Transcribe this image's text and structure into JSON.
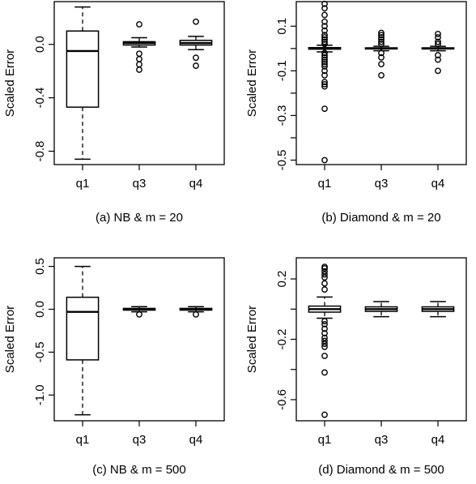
{
  "chart_data": [
    {
      "type": "boxplot",
      "caption": "(a) NB & m = 20",
      "ylabel": "Scaled Error",
      "categories": [
        "q1",
        "q3",
        "q4"
      ],
      "ylim": [
        -0.9,
        0.32
      ],
      "yticks": [
        -0.8,
        -0.4,
        0.0
      ],
      "ytick_labels": [
        "-0.8",
        "-0.4",
        "0.0"
      ],
      "boxes": [
        {
          "name": "q1",
          "whisker_low": -0.86,
          "q1": -0.47,
          "median": -0.05,
          "q3": 0.1,
          "whisker_high": 0.28,
          "outliers": []
        },
        {
          "name": "q3",
          "whisker_low": -0.02,
          "q1": -0.005,
          "median": 0.01,
          "q3": 0.02,
          "whisker_high": 0.05,
          "outliers": [
            0.15,
            -0.07,
            -0.11,
            -0.15,
            -0.19
          ]
        },
        {
          "name": "q4",
          "whisker_low": -0.04,
          "q1": -0.005,
          "median": 0.01,
          "q3": 0.03,
          "whisker_high": 0.06,
          "outliers": [
            0.17,
            -0.1,
            -0.16
          ]
        }
      ]
    },
    {
      "type": "boxplot",
      "caption": "(b) Diamond & m = 20",
      "ylabel": "Scaled Error",
      "categories": [
        "q1",
        "q3",
        "q4"
      ],
      "ylim": [
        -0.52,
        0.21
      ],
      "yticks": [
        -0.5,
        -0.4,
        -0.3,
        -0.2,
        -0.1,
        0.0,
        0.1
      ],
      "ytick_labels": [
        "-0.5",
        "",
        "-0.3",
        "",
        "-0.1",
        "",
        "0.1"
      ],
      "boxes": [
        {
          "name": "q1",
          "whisker_low": -0.015,
          "q1": -0.003,
          "median": 0.0,
          "q3": 0.004,
          "whisker_high": 0.015,
          "outliers": [
            0.2,
            0.18,
            0.15,
            0.12,
            0.1,
            0.08,
            0.06,
            0.05,
            0.04,
            0.03,
            0.02,
            -0.02,
            -0.03,
            -0.04,
            -0.05,
            -0.06,
            -0.07,
            -0.08,
            -0.1,
            -0.12,
            -0.15,
            -0.16,
            -0.17,
            -0.27,
            -0.5
          ]
        },
        {
          "name": "q3",
          "whisker_low": -0.01,
          "q1": -0.002,
          "median": 0.0,
          "q3": 0.003,
          "whisker_high": 0.01,
          "outliers": [
            0.07,
            0.06,
            0.05,
            0.04,
            0.03,
            0.02,
            -0.02,
            -0.04,
            -0.07,
            -0.12
          ]
        },
        {
          "name": "q4",
          "whisker_low": -0.01,
          "q1": -0.002,
          "median": 0.0,
          "q3": 0.003,
          "whisker_high": 0.01,
          "outliers": [
            0.065,
            0.05,
            0.03,
            0.02,
            -0.03,
            -0.05,
            -0.1
          ]
        }
      ]
    },
    {
      "type": "boxplot",
      "caption": "(c) NB & m = 500",
      "ylabel": "Scaled Error",
      "categories": [
        "q1",
        "q3",
        "q4"
      ],
      "ylim": [
        -1.3,
        0.6
      ],
      "yticks": [
        -1.0,
        -0.5,
        0.0,
        0.5
      ],
      "ytick_labels": [
        "-1.0",
        "-0.5",
        "0.0",
        "0.5"
      ],
      "boxes": [
        {
          "name": "q1",
          "whisker_low": -1.23,
          "q1": -0.59,
          "median": -0.03,
          "q3": 0.14,
          "whisker_high": 0.5,
          "outliers": []
        },
        {
          "name": "q3",
          "whisker_low": -0.03,
          "q1": -0.01,
          "median": 0.0,
          "q3": 0.01,
          "whisker_high": 0.03,
          "outliers": [
            -0.06
          ]
        },
        {
          "name": "q4",
          "whisker_low": -0.03,
          "q1": -0.01,
          "median": 0.0,
          "q3": 0.01,
          "whisker_high": 0.03,
          "outliers": [
            -0.06
          ]
        }
      ]
    },
    {
      "type": "boxplot",
      "caption": "(d) Diamond & m = 500",
      "ylabel": "Scaled Error",
      "categories": [
        "q1",
        "q3",
        "q4"
      ],
      "ylim": [
        -0.74,
        0.34
      ],
      "yticks": [
        -0.6,
        -0.4,
        -0.2,
        0.0,
        0.2
      ],
      "ytick_labels": [
        "-0.6",
        "",
        "-0.2",
        "",
        "0.2"
      ],
      "boxes": [
        {
          "name": "q1",
          "whisker_low": -0.06,
          "q1": -0.02,
          "median": 0.0,
          "q3": 0.02,
          "whisker_high": 0.08,
          "outliers": [
            0.28,
            0.27,
            0.25,
            0.23,
            0.21,
            0.17,
            0.13,
            -0.08,
            -0.1,
            -0.13,
            -0.16,
            -0.19,
            -0.21,
            -0.23,
            -0.25,
            -0.31,
            -0.42,
            -0.7
          ]
        },
        {
          "name": "q3",
          "whisker_low": -0.05,
          "q1": -0.015,
          "median": 0.0,
          "q3": 0.015,
          "whisker_high": 0.05,
          "outliers": []
        },
        {
          "name": "q4",
          "whisker_low": -0.05,
          "q1": -0.015,
          "median": 0.0,
          "q3": 0.015,
          "whisker_high": 0.05,
          "outliers": []
        }
      ]
    }
  ]
}
